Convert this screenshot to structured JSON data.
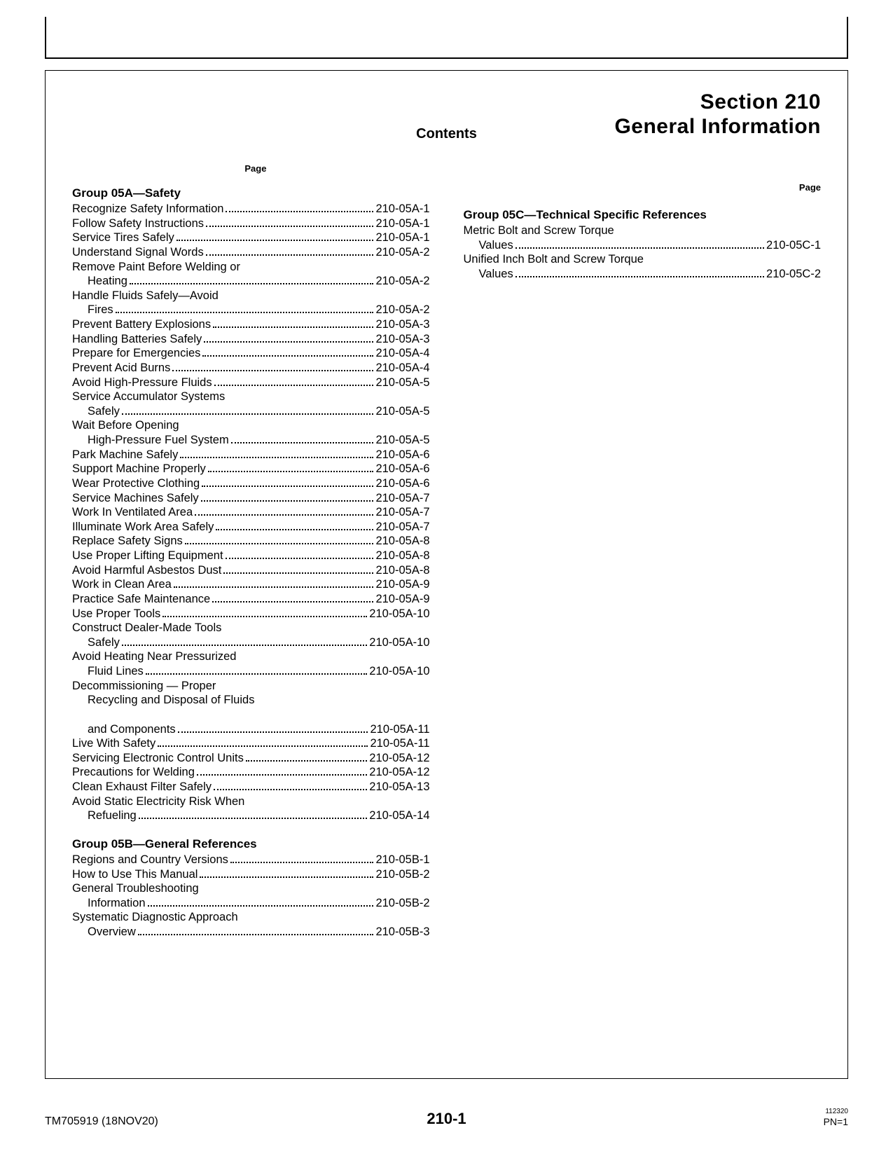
{
  "section_line1": "Section 210",
  "section_line2": "General Information",
  "contents_label": "Contents",
  "page_header": "Page",
  "footer": {
    "left": "TM705919 (18NOV20)",
    "center": "210-1",
    "small": "112320",
    "pn": "PN=1"
  },
  "left_col": [
    {
      "type": "group",
      "text": "Group 05A—Safety"
    },
    {
      "type": "entry",
      "lines": [
        "Recognize Safety Information"
      ],
      "page": "210-05A-1"
    },
    {
      "type": "entry",
      "lines": [
        "Follow Safety Instructions"
      ],
      "page": "210-05A-1"
    },
    {
      "type": "entry",
      "lines": [
        "Service Tires Safely"
      ],
      "page": "210-05A-1"
    },
    {
      "type": "entry",
      "lines": [
        "Understand Signal Words"
      ],
      "page": "210-05A-2"
    },
    {
      "type": "entry",
      "lines": [
        "Remove Paint Before Welding or",
        "Heating"
      ],
      "page": "210-05A-2"
    },
    {
      "type": "entry",
      "lines": [
        "Handle Fluids Safely—Avoid",
        "Fires"
      ],
      "page": "210-05A-2"
    },
    {
      "type": "entry",
      "lines": [
        "Prevent Battery Explosions"
      ],
      "page": "210-05A-3"
    },
    {
      "type": "entry",
      "lines": [
        "Handling Batteries Safely"
      ],
      "page": "210-05A-3"
    },
    {
      "type": "entry",
      "lines": [
        "Prepare for Emergencies"
      ],
      "page": "210-05A-4"
    },
    {
      "type": "entry",
      "lines": [
        "Prevent Acid Burns"
      ],
      "page": "210-05A-4"
    },
    {
      "type": "entry",
      "lines": [
        "Avoid High-Pressure Fluids"
      ],
      "page": "210-05A-5"
    },
    {
      "type": "entry",
      "lines": [
        "Service Accumulator Systems",
        "Safely"
      ],
      "page": "210-05A-5"
    },
    {
      "type": "entry",
      "lines": [
        "Wait Before Opening",
        "High-Pressure Fuel System"
      ],
      "page": "210-05A-5"
    },
    {
      "type": "entry",
      "lines": [
        "Park Machine Safely"
      ],
      "page": "210-05A-6"
    },
    {
      "type": "entry",
      "lines": [
        "Support Machine Properly"
      ],
      "page": "210-05A-6"
    },
    {
      "type": "entry",
      "lines": [
        "Wear Protective Clothing"
      ],
      "page": "210-05A-6"
    },
    {
      "type": "entry",
      "lines": [
        "Service Machines Safely"
      ],
      "page": "210-05A-7"
    },
    {
      "type": "entry",
      "lines": [
        "Work In Ventilated Area"
      ],
      "page": "210-05A-7"
    },
    {
      "type": "entry",
      "lines": [
        "Illuminate Work Area Safely"
      ],
      "page": "210-05A-7"
    },
    {
      "type": "entry",
      "lines": [
        "Replace Safety Signs"
      ],
      "page": "210-05A-8"
    },
    {
      "type": "entry",
      "lines": [
        "Use Proper Lifting Equipment"
      ],
      "page": "210-05A-8"
    },
    {
      "type": "entry",
      "lines": [
        "Avoid Harmful Asbestos Dust"
      ],
      "page": "210-05A-8"
    },
    {
      "type": "entry",
      "lines": [
        "Work in Clean Area"
      ],
      "page": "210-05A-9"
    },
    {
      "type": "entry",
      "lines": [
        "Practice Safe Maintenance"
      ],
      "page": "210-05A-9"
    },
    {
      "type": "entry",
      "lines": [
        "Use Proper Tools"
      ],
      "page": "210-05A-10"
    },
    {
      "type": "entry",
      "lines": [
        "Construct Dealer-Made Tools",
        "Safely"
      ],
      "page": "210-05A-10"
    },
    {
      "type": "entry",
      "lines": [
        "Avoid Heating Near Pressurized",
        "Fluid Lines"
      ],
      "page": "210-05A-10"
    },
    {
      "type": "entry",
      "lines": [
        "Decommissioning — Proper",
        "Recycling and Disposal of Fluids",
        "and Components"
      ],
      "page": "210-05A-11"
    },
    {
      "type": "entry",
      "lines": [
        "Live With Safety"
      ],
      "page": "210-05A-11"
    },
    {
      "type": "entry",
      "lines": [
        "Servicing Electronic Control Units"
      ],
      "page": "210-05A-12"
    },
    {
      "type": "entry",
      "lines": [
        "Precautions for Welding"
      ],
      "page": "210-05A-12"
    },
    {
      "type": "entry",
      "lines": [
        "Clean Exhaust Filter Safely"
      ],
      "page": "210-05A-13"
    },
    {
      "type": "entry",
      "lines": [
        "Avoid Static Electricity Risk When",
        "Refueling"
      ],
      "page": "210-05A-14"
    },
    {
      "type": "spacer"
    },
    {
      "type": "group",
      "text": "Group 05B—General References"
    },
    {
      "type": "entry",
      "lines": [
        "Regions and Country Versions"
      ],
      "page": "210-05B-1"
    },
    {
      "type": "entry",
      "lines": [
        "How to Use This Manual"
      ],
      "page": "210-05B-2"
    },
    {
      "type": "entry",
      "lines": [
        "General Troubleshooting",
        "Information"
      ],
      "page": "210-05B-2"
    },
    {
      "type": "entry",
      "lines": [
        "Systematic Diagnostic Approach",
        "Overview"
      ],
      "page": "210-05B-3"
    }
  ],
  "right_col": [
    {
      "type": "group",
      "text": "Group 05C—Technical Specific References"
    },
    {
      "type": "entry",
      "lines": [
        "Metric Bolt and Screw Torque",
        "Values"
      ],
      "page": "210-05C-1"
    },
    {
      "type": "entry",
      "lines": [
        "Unified Inch Bolt and Screw Torque",
        "Values"
      ],
      "page": "210-05C-2"
    }
  ]
}
